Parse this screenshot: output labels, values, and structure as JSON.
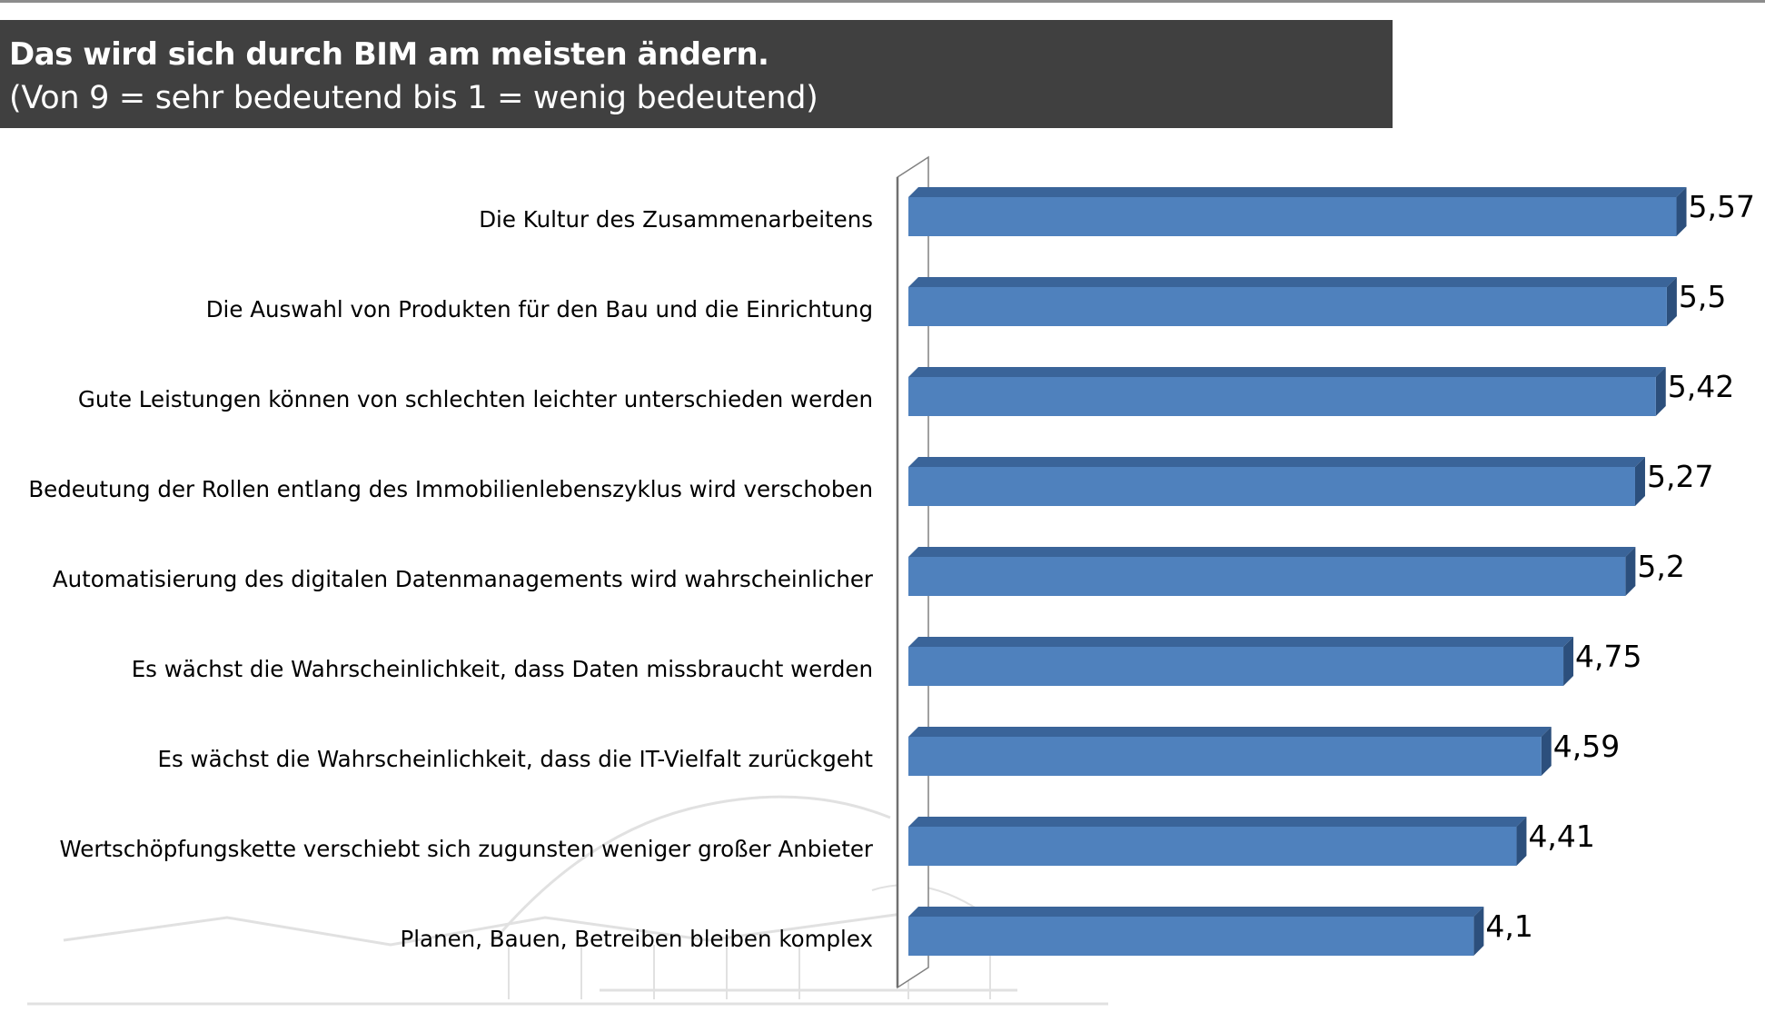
{
  "header": {
    "title": "Das wird sich durch BIM am meisten ändern.",
    "subtitle": "(Von 9 = sehr bedeutend bis 1 = wenig bedeutend)"
  },
  "colors": {
    "bar_front": "#4f81bd",
    "bar_top": "#3a6499",
    "bar_side": "#2c4f7c",
    "title_bg": "#404040",
    "axis": "#808080"
  },
  "chart_data": {
    "type": "bar",
    "orientation": "horizontal",
    "style": "3d",
    "title": "Das wird sich durch BIM am meisten ändern.",
    "subtitle": "(Von 9 = sehr bedeutend bis 1 = wenig bedeutend)",
    "categories": [
      "Die Kultur des Zusammenarbeitens",
      "Die Auswahl von Produkten für den Bau und die Einrichtung",
      "Gute Leistungen können von schlechten leichter unterschieden werden",
      "Bedeutung der Rollen entlang des Immobilienlebenszyklus wird verschoben",
      "Automatisierung des digitalen Datenmanagements wird wahrscheinlicher",
      "Es wächst die Wahrscheinlichkeit, dass Daten missbraucht werden",
      "Es wächst die Wahrscheinlichkeit, dass die IT-Vielfalt zurückgeht",
      "Wertschöpfungskette verschiebt sich zugunsten weniger großer Anbieter",
      "Planen, Bauen, Betreiben bleiben komplex"
    ],
    "values": [
      5.57,
      5.5,
      5.42,
      5.27,
      5.2,
      4.75,
      4.59,
      4.41,
      4.1
    ],
    "value_labels": [
      "5,57",
      "5,5",
      "5,42",
      "5,27",
      "5,2",
      "4,75",
      "4,59",
      "4,41",
      "4,1"
    ],
    "xlim": [
      0,
      6
    ],
    "grid": false,
    "legend": "none"
  }
}
